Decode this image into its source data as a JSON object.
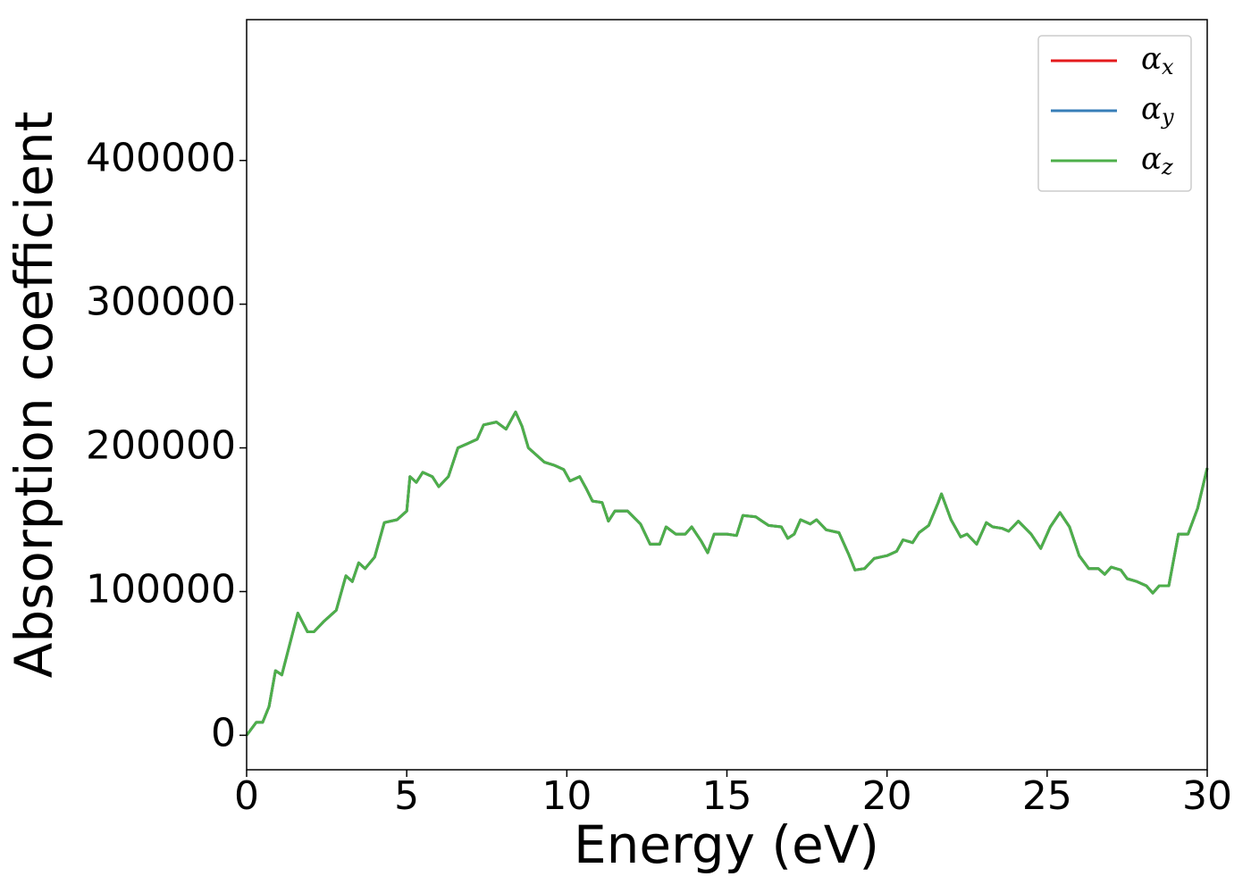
{
  "chart_data": {
    "type": "line",
    "xlabel": "Energy (eV)",
    "ylabel": "Absorption coefficient",
    "x": [
      0,
      0.3,
      0.5,
      0.7,
      0.9,
      1.1,
      1.4,
      1.6,
      1.9,
      2.1,
      2.4,
      2.8,
      3.1,
      3.3,
      3.5,
      3.7,
      4.0,
      4.3,
      4.7,
      5.0,
      5.1,
      5.3,
      5.5,
      5.8,
      6.0,
      6.3,
      6.6,
      6.9,
      7.2,
      7.4,
      7.8,
      8.1,
      8.4,
      8.6,
      8.8,
      9.3,
      9.6,
      9.9,
      10.1,
      10.4,
      10.6,
      10.8,
      11.1,
      11.3,
      11.5,
      11.9,
      12.3,
      12.6,
      12.9,
      13.1,
      13.4,
      13.7,
      13.9,
      14.2,
      14.4,
      14.6,
      15.0,
      15.3,
      15.5,
      15.9,
      16.1,
      16.3,
      16.7,
      16.9,
      17.1,
      17.3,
      17.6,
      17.8,
      18.1,
      18.5,
      18.8,
      19.0,
      19.3,
      19.6,
      20.0,
      20.3,
      20.5,
      20.8,
      21.0,
      21.3,
      21.6,
      21.7,
      22.0,
      22.3,
      22.5,
      22.8,
      23.1,
      23.3,
      23.6,
      23.8,
      24.1,
      24.5,
      24.8,
      25.1,
      25.4,
      25.7,
      26.0,
      26.3,
      26.6,
      26.8,
      27.0,
      27.3,
      27.5,
      27.8,
      28.1,
      28.3,
      28.5,
      28.8,
      29.1,
      29.4,
      29.7,
      30
    ],
    "series": [
      {
        "name": "αx",
        "color": "#e41a1c",
        "values": [
          0,
          9000,
          9000,
          20000,
          45000,
          42000,
          68000,
          85000,
          72000,
          72000,
          79000,
          87000,
          111000,
          107000,
          120000,
          116000,
          124000,
          148000,
          150000,
          156000,
          180000,
          176000,
          183000,
          180000,
          173000,
          180000,
          200000,
          203000,
          206000,
          216000,
          218000,
          213000,
          225000,
          215000,
          200000,
          190000,
          188000,
          185000,
          177000,
          180000,
          172000,
          163000,
          162000,
          149000,
          156000,
          156000,
          147000,
          133000,
          133000,
          145000,
          140000,
          140000,
          145000,
          135000,
          127000,
          140000,
          140000,
          139000,
          153000,
          152000,
          149000,
          146000,
          145000,
          137000,
          140000,
          150000,
          147000,
          150000,
          143000,
          141000,
          126000,
          115000,
          116000,
          123000,
          125000,
          128000,
          136000,
          134000,
          141000,
          146000,
          162000,
          168000,
          150000,
          138000,
          140000,
          133000,
          148000,
          145000,
          144000,
          142000,
          149000,
          140000,
          130000,
          145000,
          155000,
          145000,
          125000,
          116000,
          116000,
          112000,
          117000,
          115000,
          109000,
          107000,
          104000,
          99000,
          104000,
          104000,
          140000,
          140000,
          158000,
          186000
        ]
      },
      {
        "name": "αy",
        "color": "#377eb8",
        "values": [
          0,
          9000,
          9000,
          20000,
          45000,
          42000,
          68000,
          85000,
          72000,
          72000,
          79000,
          87000,
          111000,
          107000,
          120000,
          116000,
          124000,
          148000,
          150000,
          156000,
          180000,
          176000,
          183000,
          180000,
          173000,
          180000,
          200000,
          203000,
          206000,
          216000,
          218000,
          213000,
          225000,
          215000,
          200000,
          190000,
          188000,
          185000,
          177000,
          180000,
          172000,
          163000,
          162000,
          149000,
          156000,
          156000,
          147000,
          133000,
          133000,
          145000,
          140000,
          140000,
          145000,
          135000,
          127000,
          140000,
          140000,
          139000,
          153000,
          152000,
          149000,
          146000,
          145000,
          137000,
          140000,
          150000,
          147000,
          150000,
          143000,
          141000,
          126000,
          115000,
          116000,
          123000,
          125000,
          128000,
          136000,
          134000,
          141000,
          146000,
          162000,
          168000,
          150000,
          138000,
          140000,
          133000,
          148000,
          145000,
          144000,
          142000,
          149000,
          140000,
          130000,
          145000,
          155000,
          145000,
          125000,
          116000,
          116000,
          112000,
          117000,
          115000,
          109000,
          107000,
          104000,
          99000,
          104000,
          104000,
          140000,
          140000,
          158000,
          186000
        ]
      },
      {
        "name": "αz",
        "color": "#4daf4a",
        "values": [
          0,
          9000,
          9000,
          20000,
          45000,
          42000,
          68000,
          85000,
          72000,
          72000,
          79000,
          87000,
          111000,
          107000,
          120000,
          116000,
          124000,
          148000,
          150000,
          156000,
          180000,
          176000,
          183000,
          180000,
          173000,
          180000,
          200000,
          203000,
          206000,
          216000,
          218000,
          213000,
          225000,
          215000,
          200000,
          190000,
          188000,
          185000,
          177000,
          180000,
          172000,
          163000,
          162000,
          149000,
          156000,
          156000,
          147000,
          133000,
          133000,
          145000,
          140000,
          140000,
          145000,
          135000,
          127000,
          140000,
          140000,
          139000,
          153000,
          152000,
          149000,
          146000,
          145000,
          137000,
          140000,
          150000,
          147000,
          150000,
          143000,
          141000,
          126000,
          115000,
          116000,
          123000,
          125000,
          128000,
          136000,
          134000,
          141000,
          146000,
          162000,
          168000,
          150000,
          138000,
          140000,
          133000,
          148000,
          145000,
          144000,
          142000,
          149000,
          140000,
          130000,
          145000,
          155000,
          145000,
          125000,
          116000,
          116000,
          112000,
          117000,
          115000,
          109000,
          107000,
          104000,
          99000,
          104000,
          104000,
          140000,
          140000,
          158000,
          186000
        ]
      }
    ],
    "xlim": [
      0,
      30
    ],
    "xticks": [
      0,
      5,
      10,
      15,
      20,
      25,
      30
    ],
    "ylim": [
      -24000,
      498000
    ],
    "yticks": [
      0,
      100000,
      200000,
      300000,
      400000
    ],
    "legend": "upper right"
  }
}
